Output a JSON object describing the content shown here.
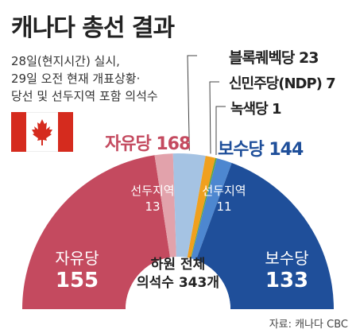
{
  "title": "캐나다 총선 결과",
  "subtitle_lines": [
    "28일(현지시간) 실시,",
    "29일 오전 현재 개표상황·",
    "당선 및 선두지역 포함 의석수"
  ],
  "source": "자료: 캐나다 CBC",
  "colors": {
    "liberal": "#c44a5f",
    "liberal_light": "#e2a2ab",
    "bq": "#a5c3e3",
    "ndp": "#f0a01e",
    "green": "#5aa63a",
    "conservative": "#1f4f9a",
    "conservative_light": "#4d87d0",
    "center": "#ffffff"
  },
  "labels": {
    "liberal_total": "자유당 168",
    "conservative_total": "보수당 144",
    "bq": "블록퀘벡당 23",
    "ndp": "신민주당(NDP) 7",
    "green": "녹색당 1",
    "liberal_leading_name": "선두지역",
    "liberal_leading_value": "13",
    "conservative_leading_name": "선두지역",
    "conservative_leading_value": "11",
    "liberal_won_name": "자유당",
    "liberal_won_value": "155",
    "conservative_won_name": "보수당",
    "conservative_won_value": "133",
    "center_line1": "하원 전체",
    "center_line2": "의석수 343개"
  },
  "chart_data": {
    "type": "pie",
    "subtype": "semicircle",
    "total_seats": 343,
    "segments": [
      {
        "party": "자유당",
        "status": "당선",
        "value": 155
      },
      {
        "party": "자유당",
        "status": "선두지역",
        "value": 13
      },
      {
        "party": "블록퀘벡당",
        "status": "합계",
        "value": 23
      },
      {
        "party": "신민주당(NDP)",
        "status": "합계",
        "value": 7
      },
      {
        "party": "녹색당",
        "status": "합계",
        "value": 1
      },
      {
        "party": "보수당",
        "status": "선두지역",
        "value": 11
      },
      {
        "party": "보수당",
        "status": "당선",
        "value": 133
      }
    ]
  }
}
